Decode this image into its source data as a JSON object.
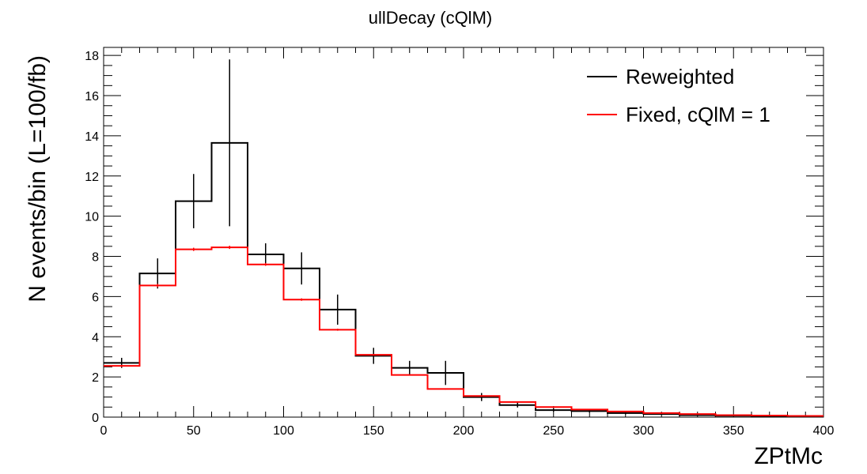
{
  "chart_data": {
    "type": "line",
    "title": "ullDecay (cQlM)",
    "xlabel": "ZPtMc",
    "ylabel": "N events/bin (L=100/fb)",
    "xlim": [
      0,
      400
    ],
    "ylim": [
      0,
      18.4
    ],
    "x_ticks": [
      0,
      50,
      100,
      150,
      200,
      250,
      300,
      350,
      400
    ],
    "y_ticks": [
      0,
      2,
      4,
      6,
      8,
      10,
      12,
      14,
      16,
      18
    ],
    "x_tick_labels": [
      "0",
      "50",
      "100",
      "150",
      "200",
      "250",
      "300",
      "350",
      "400"
    ],
    "y_tick_labels": [
      "0",
      "2",
      "4",
      "6",
      "8",
      "10",
      "12",
      "14",
      "16",
      "18"
    ],
    "bin_edges": [
      0,
      20,
      40,
      60,
      80,
      100,
      120,
      140,
      160,
      180,
      200,
      220,
      240,
      260,
      280,
      300,
      320,
      340,
      360,
      380,
      400
    ],
    "legend_position": "top-right",
    "grid": false,
    "series": [
      {
        "name": "Reweighted",
        "color": "#000000",
        "values": [
          2.7,
          7.15,
          10.75,
          13.65,
          8.1,
          7.4,
          5.35,
          3.05,
          2.45,
          2.2,
          1.0,
          0.6,
          0.35,
          0.3,
          0.2,
          0.15,
          0.1,
          0.07,
          0.05,
          0.04
        ],
        "errors": [
          0.25,
          0.75,
          1.35,
          4.15,
          0.55,
          0.8,
          0.75,
          0.4,
          0.35,
          0.6,
          0.2,
          0.12,
          0.08,
          0.07,
          0.06,
          0.04,
          0.03,
          0.02,
          0.02,
          0.02
        ]
      },
      {
        "name": "Fixed, cQlM = 1",
        "color": "#ff0000",
        "values": [
          2.55,
          6.55,
          8.35,
          8.45,
          7.6,
          5.85,
          4.35,
          3.1,
          2.1,
          1.4,
          1.05,
          0.75,
          0.5,
          0.38,
          0.28,
          0.2,
          0.15,
          0.1,
          0.08,
          0.06
        ],
        "errors": [
          0.05,
          0.08,
          0.08,
          0.08,
          0.07,
          0.06,
          0.05,
          0.04,
          0.03,
          0.03,
          0.02,
          0.02,
          0.02,
          0.01,
          0.01,
          0.01,
          0.01,
          0.01,
          0.01,
          0.01
        ]
      }
    ]
  }
}
